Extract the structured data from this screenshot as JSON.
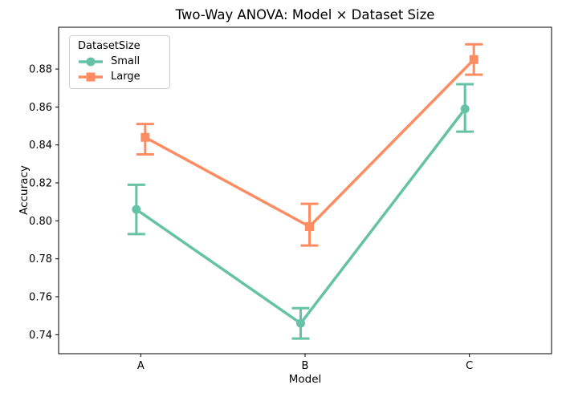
{
  "chart_data": {
    "type": "line",
    "subtype": "pointplot-with-error-bars",
    "title": "Two-Way ANOVA: Model × Dataset Size",
    "xlabel": "Model",
    "ylabel": "Accuracy",
    "categories": [
      "A",
      "B",
      "C"
    ],
    "yticks": [
      0.74,
      0.76,
      0.78,
      0.8,
      0.82,
      0.84,
      0.86,
      0.88
    ],
    "ylim": [
      0.73,
      0.902
    ],
    "grid": false,
    "background": "#ffffff",
    "legend": {
      "title": "DatasetSize",
      "position": "upper left",
      "entries": [
        "Small",
        "Large"
      ]
    },
    "series": [
      {
        "name": "Small",
        "marker": "circle",
        "color": "#66c2a5",
        "values": [
          0.806,
          0.746,
          0.859
        ],
        "err_low": [
          0.793,
          0.738,
          0.847
        ],
        "err_high": [
          0.819,
          0.754,
          0.872
        ]
      },
      {
        "name": "Large",
        "marker": "square",
        "color": "#fc8d62",
        "values": [
          0.844,
          0.797,
          0.885
        ],
        "err_low": [
          0.835,
          0.787,
          0.877
        ],
        "err_high": [
          0.851,
          0.809,
          0.893
        ]
      }
    ]
  }
}
